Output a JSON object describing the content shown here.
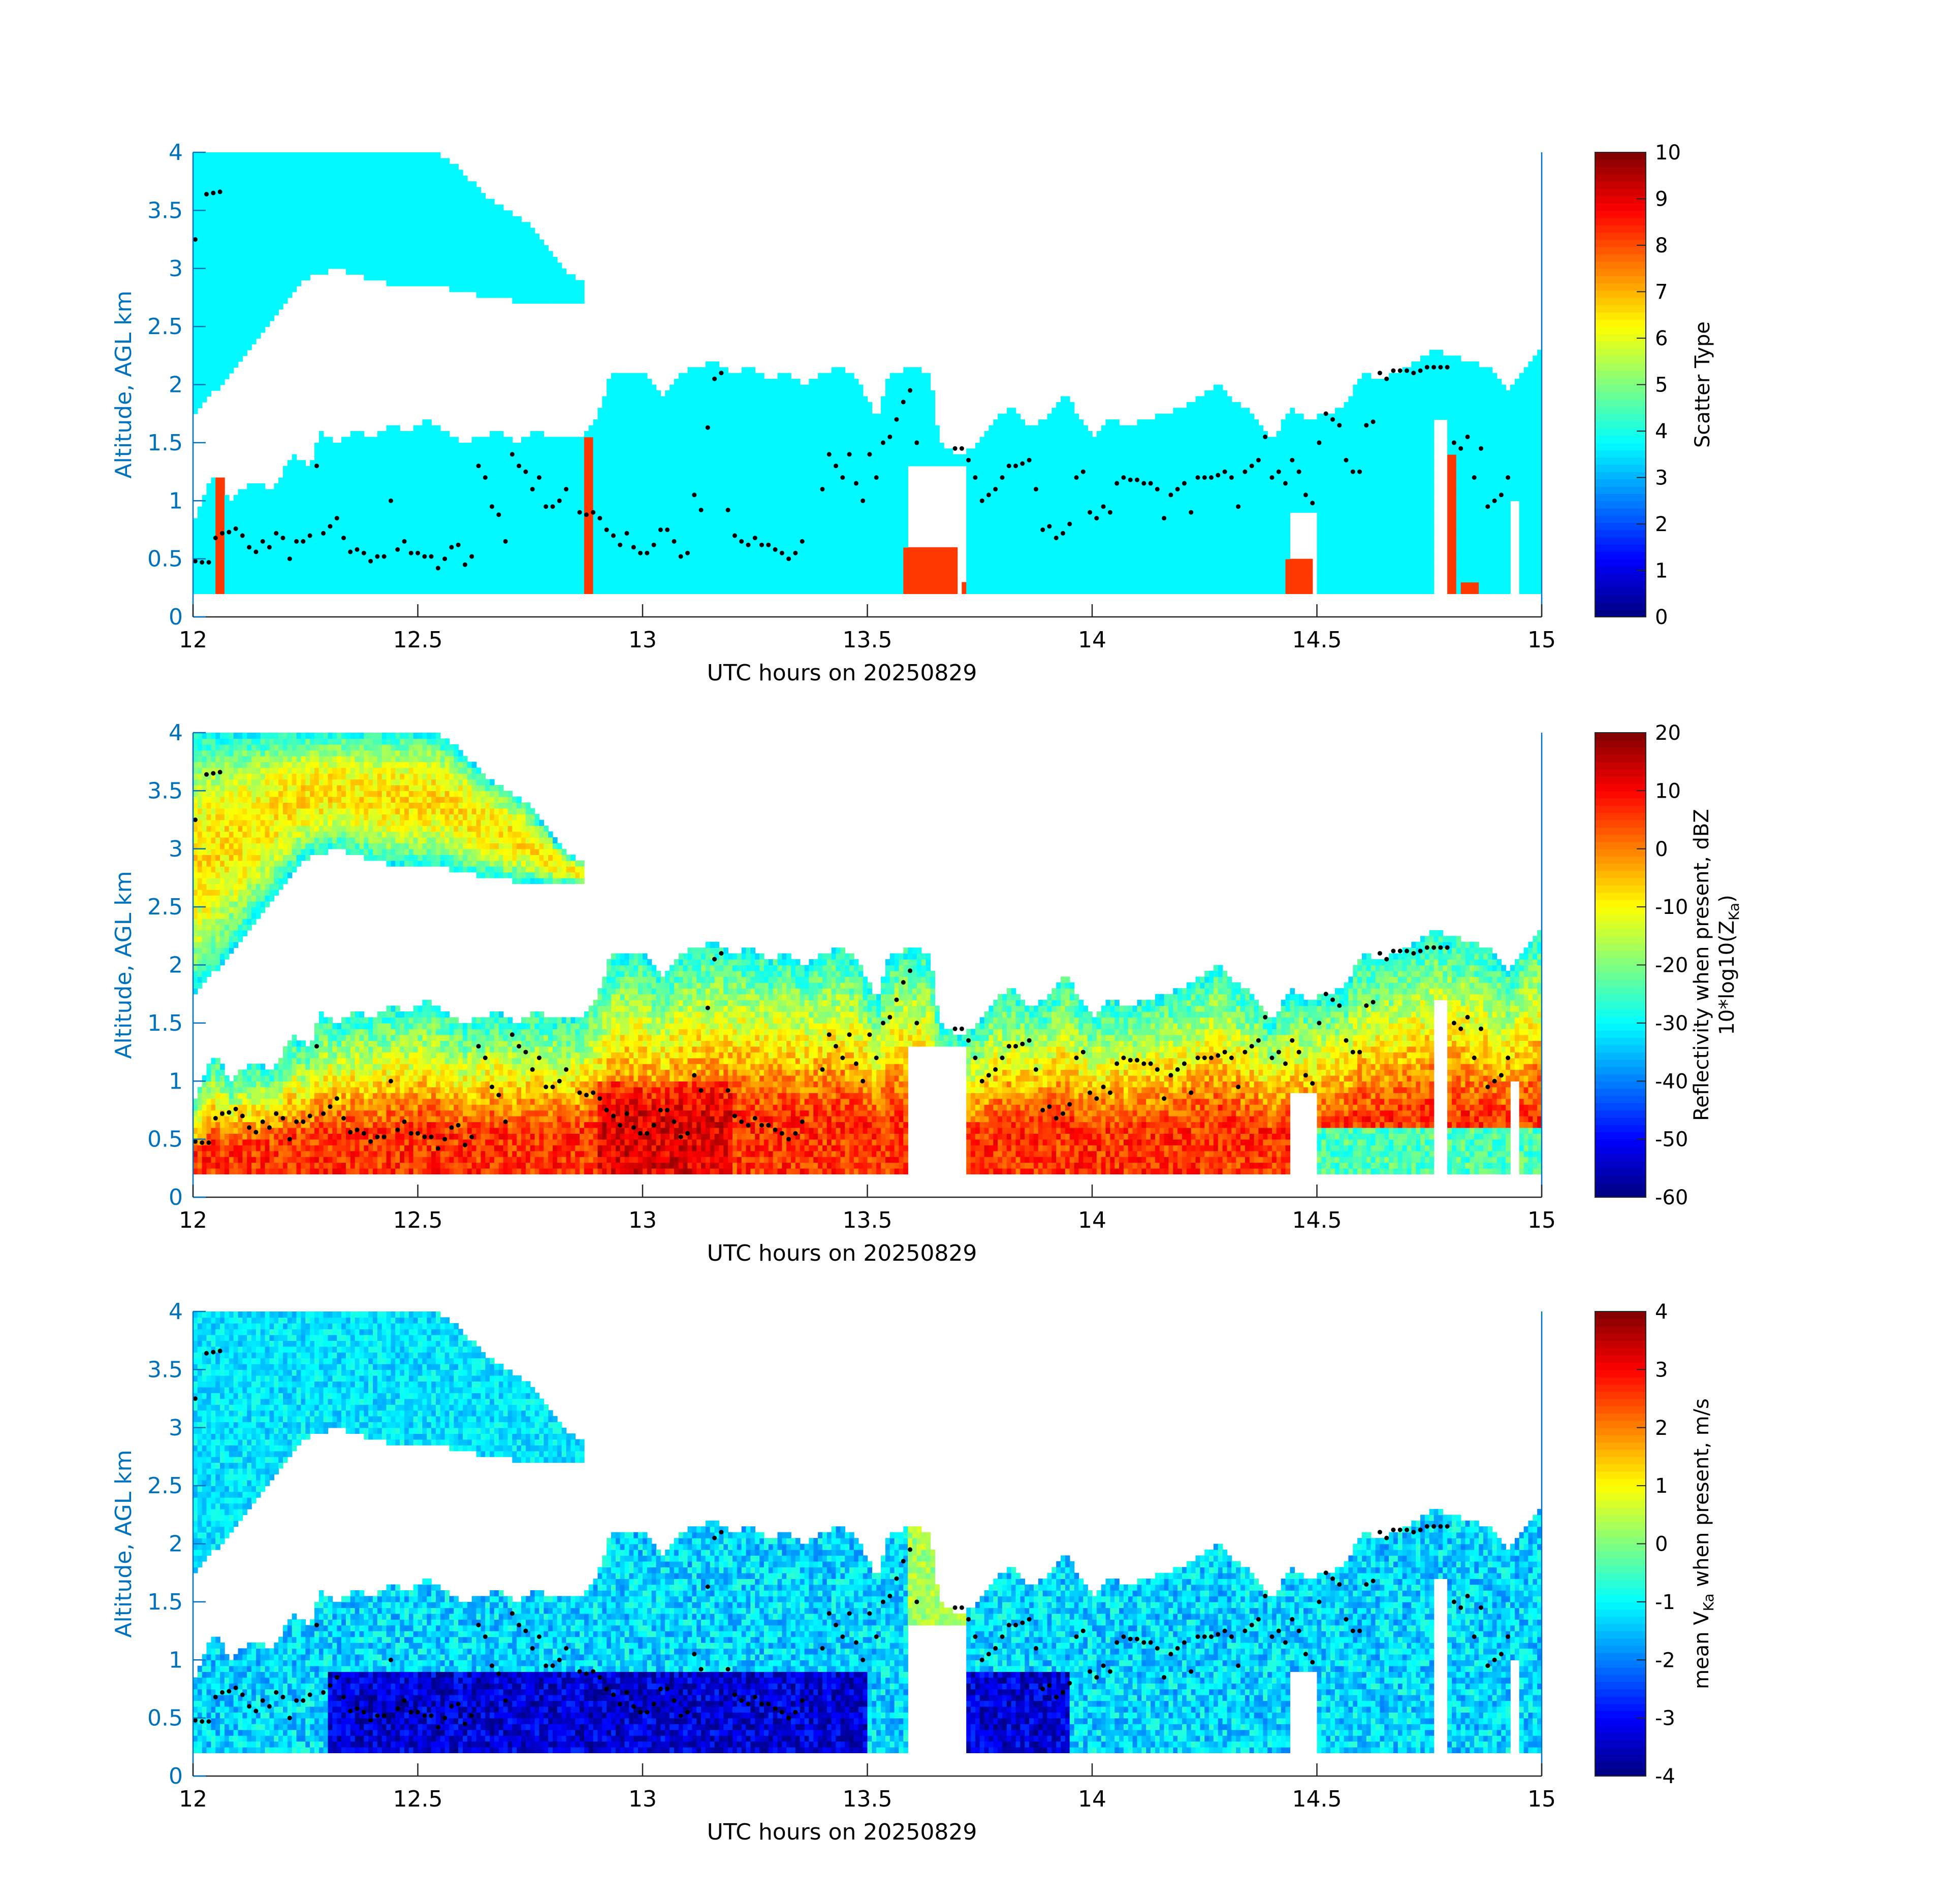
{
  "figure": {
    "xlabel": "UTC hours on 20250829",
    "ylabel": "Altitude, AGL km",
    "xlim": [
      12,
      15
    ],
    "ylim": [
      0,
      4
    ],
    "x_ticks": [
      "12",
      "12.5",
      "13",
      "13.5",
      "14",
      "14.5",
      "15"
    ],
    "y_ticks": [
      "0",
      "0.5",
      "1",
      "1.5",
      "2",
      "2.5",
      "3",
      "3.5",
      "4"
    ],
    "axis_color": "#0072bd"
  },
  "chart_data": [
    {
      "type": "heatmap",
      "name": "scatter-type",
      "xlabel": "UTC hours on 20250829",
      "ylabel": "Altitude, AGL km",
      "xlim": [
        12,
        15
      ],
      "ylim": [
        0,
        4
      ],
      "colorbar": {
        "label_lines": [
          "Scatter Type"
        ],
        "range": [
          0,
          10
        ],
        "ticks": [
          "0",
          "1",
          "2",
          "3",
          "4",
          "5",
          "6",
          "7",
          "8",
          "9",
          "10"
        ],
        "colormap": "jet"
      },
      "field": "scatter_type",
      "cloud_value": 3.7,
      "precip_value": 8.2,
      "precip_columns": [
        {
          "x": [
            12.05,
            12.07
          ],
          "top_km": 1.2
        },
        {
          "x": [
            12.87,
            12.89
          ],
          "top_km": 1.55
        },
        {
          "x": [
            13.58,
            13.7
          ],
          "top_km": 0.6
        },
        {
          "x": [
            13.71,
            13.72
          ],
          "top_km": 0.3
        },
        {
          "x": [
            14.43,
            14.49
          ],
          "top_km": 0.5
        },
        {
          "x": [
            14.79,
            14.81
          ],
          "top_km": 1.38
        },
        {
          "x": [
            14.82,
            14.86
          ],
          "top_km": 0.3
        }
      ]
    },
    {
      "type": "heatmap",
      "name": "reflectivity",
      "xlabel": "UTC hours on 20250829",
      "ylabel": "Altitude, AGL km",
      "xlim": [
        12,
        15
      ],
      "ylim": [
        0,
        4
      ],
      "colorbar": {
        "label_lines": [
          "Reflectivity when present, dBZ",
          "10*log10(Z",
          "Ka",
          ")"
        ],
        "range": [
          -60,
          20
        ],
        "ticks": [
          "-60",
          "-50",
          "-40",
          "-30",
          "-20",
          "-10",
          "0",
          "10",
          "20"
        ],
        "colormap": "jet"
      },
      "field": "reflectivity_dbz"
    },
    {
      "type": "heatmap",
      "name": "mean-velocity",
      "xlabel": "UTC hours on 20250829",
      "ylabel": "Altitude, AGL km",
      "xlim": [
        12,
        15
      ],
      "ylim": [
        0,
        4
      ],
      "colorbar": {
        "label_lines": [
          "mean V",
          "Ka",
          " when present, m/s"
        ],
        "range": [
          -4,
          4
        ],
        "ticks": [
          "-4",
          "-3",
          "-2",
          "-1",
          "0",
          "1",
          "2",
          "3",
          "4"
        ],
        "colormap": "jet"
      },
      "field": "mean_velocity_ms"
    }
  ],
  "cloud_layers": {
    "time_step_h": 0.02,
    "lower_cloud": {
      "base_km": 0.18,
      "tops_km": [
        [
          12.0,
          0.8
        ],
        [
          12.02,
          1.0
        ],
        [
          12.04,
          1.2
        ],
        [
          12.06,
          1.2
        ],
        [
          12.08,
          1.0
        ],
        [
          12.1,
          1.1
        ],
        [
          12.14,
          1.15
        ],
        [
          12.18,
          1.1
        ],
        [
          12.22,
          1.4
        ],
        [
          12.26,
          1.3
        ],
        [
          12.28,
          1.6
        ],
        [
          12.32,
          1.5
        ],
        [
          12.36,
          1.6
        ],
        [
          12.4,
          1.55
        ],
        [
          12.44,
          1.65
        ],
        [
          12.48,
          1.6
        ],
        [
          12.52,
          1.7
        ],
        [
          12.56,
          1.6
        ],
        [
          12.6,
          1.5
        ],
        [
          12.64,
          1.55
        ],
        [
          12.68,
          1.6
        ],
        [
          12.72,
          1.5
        ],
        [
          12.76,
          1.6
        ],
        [
          12.8,
          1.55
        ],
        [
          12.86,
          1.55
        ],
        [
          12.9,
          1.75
        ],
        [
          12.93,
          2.1
        ],
        [
          13.0,
          2.1
        ],
        [
          13.04,
          1.9
        ],
        [
          13.08,
          2.1
        ],
        [
          13.12,
          2.15
        ],
        [
          13.16,
          2.2
        ],
        [
          13.2,
          2.1
        ],
        [
          13.24,
          2.15
        ],
        [
          13.28,
          2.05
        ],
        [
          13.32,
          2.1
        ],
        [
          13.36,
          2.0
        ],
        [
          13.4,
          2.1
        ],
        [
          13.44,
          2.15
        ],
        [
          13.48,
          2.05
        ],
        [
          13.52,
          1.7
        ],
        [
          13.55,
          2.1
        ],
        [
          13.6,
          2.15
        ],
        [
          13.64,
          2.1
        ],
        [
          13.66,
          1.5
        ],
        [
          13.7,
          1.4
        ],
        [
          13.74,
          1.45
        ],
        [
          13.78,
          1.7
        ],
        [
          13.82,
          1.8
        ],
        [
          13.86,
          1.65
        ],
        [
          13.9,
          1.7
        ],
        [
          13.94,
          1.95
        ],
        [
          13.97,
          1.7
        ],
        [
          14.0,
          1.55
        ],
        [
          14.04,
          1.7
        ],
        [
          14.08,
          1.65
        ],
        [
          14.12,
          1.7
        ],
        [
          14.16,
          1.75
        ],
        [
          14.2,
          1.8
        ],
        [
          14.24,
          1.9
        ],
        [
          14.28,
          2.0
        ],
        [
          14.32,
          1.85
        ],
        [
          14.36,
          1.75
        ],
        [
          14.4,
          1.5
        ],
        [
          14.44,
          1.8
        ],
        [
          14.48,
          1.7
        ],
        [
          14.52,
          1.75
        ],
        [
          14.56,
          1.8
        ],
        [
          14.6,
          2.1
        ],
        [
          14.64,
          2.05
        ],
        [
          14.68,
          2.1
        ],
        [
          14.72,
          2.2
        ],
        [
          14.76,
          2.3
        ],
        [
          14.8,
          2.25
        ],
        [
          14.84,
          2.2
        ],
        [
          14.88,
          2.15
        ],
        [
          14.92,
          1.95
        ],
        [
          14.96,
          2.15
        ],
        [
          15.0,
          2.35
        ]
      ],
      "gaps": [
        {
          "x": [
            13.59,
            13.72
          ],
          "top_km": 1.3
        },
        {
          "x": [
            14.44,
            14.5
          ],
          "top_km": 0.9
        },
        {
          "x": [
            14.76,
            14.79
          ],
          "top_km": 1.7
        },
        {
          "x": [
            14.93,
            14.95
          ],
          "top_km": 1.0
        }
      ]
    },
    "upper_cloud": {
      "base_km": [
        [
          12.0,
          1.75
        ],
        [
          12.04,
          1.9
        ],
        [
          12.08,
          2.1
        ],
        [
          12.12,
          2.3
        ],
        [
          12.16,
          2.5
        ],
        [
          12.2,
          2.7
        ],
        [
          12.24,
          2.9
        ],
        [
          12.28,
          2.95
        ],
        [
          12.32,
          3.0
        ],
        [
          12.36,
          2.95
        ],
        [
          12.4,
          2.9
        ],
        [
          12.46,
          2.85
        ],
        [
          12.54,
          2.85
        ],
        [
          12.6,
          2.8
        ],
        [
          12.66,
          2.75
        ],
        [
          12.72,
          2.72
        ],
        [
          12.78,
          2.7
        ],
        [
          12.84,
          2.7
        ],
        [
          12.86,
          2.7
        ]
      ],
      "top_km": [
        [
          12.0,
          4.0
        ],
        [
          12.54,
          4.0
        ],
        [
          12.58,
          3.9
        ],
        [
          12.62,
          3.75
        ],
        [
          12.66,
          3.6
        ],
        [
          12.7,
          3.5
        ],
        [
          12.74,
          3.4
        ],
        [
          12.78,
          3.2
        ],
        [
          12.82,
          3.0
        ],
        [
          12.86,
          2.9
        ]
      ]
    }
  },
  "cloud_base_dots": [
    [
      12.005,
      0.48
    ],
    [
      12.02,
      0.47
    ],
    [
      12.035,
      0.47
    ],
    [
      12.05,
      0.68
    ],
    [
      12.065,
      0.72
    ],
    [
      12.08,
      0.73
    ],
    [
      12.095,
      0.76
    ],
    [
      12.11,
      0.7
    ],
    [
      12.125,
      0.6
    ],
    [
      12.14,
      0.56
    ],
    [
      12.155,
      0.65
    ],
    [
      12.17,
      0.6
    ],
    [
      12.185,
      0.72
    ],
    [
      12.2,
      0.68
    ],
    [
      12.215,
      0.5
    ],
    [
      12.23,
      0.65
    ],
    [
      12.245,
      0.65
    ],
    [
      12.26,
      0.7
    ],
    [
      12.275,
      1.3
    ],
    [
      12.29,
      0.72
    ],
    [
      12.305,
      0.78
    ],
    [
      12.32,
      0.85
    ],
    [
      12.335,
      0.68
    ],
    [
      12.35,
      0.56
    ],
    [
      12.365,
      0.58
    ],
    [
      12.38,
      0.55
    ],
    [
      12.395,
      0.48
    ],
    [
      12.41,
      0.52
    ],
    [
      12.425,
      0.52
    ],
    [
      12.44,
      1.0
    ],
    [
      12.455,
      0.58
    ],
    [
      12.47,
      0.65
    ],
    [
      12.485,
      0.55
    ],
    [
      12.5,
      0.55
    ],
    [
      12.515,
      0.52
    ],
    [
      12.53,
      0.52
    ],
    [
      12.545,
      0.42
    ],
    [
      12.56,
      0.5
    ],
    [
      12.575,
      0.6
    ],
    [
      12.59,
      0.62
    ],
    [
      12.605,
      0.45
    ],
    [
      12.62,
      0.52
    ],
    [
      12.635,
      1.3
    ],
    [
      12.65,
      1.2
    ],
    [
      12.665,
      0.95
    ],
    [
      12.68,
      0.88
    ],
    [
      12.695,
      0.65
    ],
    [
      12.71,
      1.4
    ],
    [
      12.725,
      1.3
    ],
    [
      12.74,
      1.25
    ],
    [
      12.755,
      1.1
    ],
    [
      12.77,
      1.2
    ],
    [
      12.785,
      0.95
    ],
    [
      12.8,
      0.95
    ],
    [
      12.815,
      1.0
    ],
    [
      12.83,
      1.1
    ],
    [
      12.86,
      0.9
    ],
    [
      12.875,
      0.88
    ],
    [
      12.89,
      0.9
    ],
    [
      12.905,
      0.85
    ],
    [
      12.92,
      0.75
    ],
    [
      12.935,
      0.7
    ],
    [
      12.95,
      0.62
    ],
    [
      12.965,
      0.72
    ],
    [
      12.98,
      0.6
    ],
    [
      12.995,
      0.55
    ],
    [
      13.01,
      0.55
    ],
    [
      13.025,
      0.62
    ],
    [
      13.04,
      0.75
    ],
    [
      13.055,
      0.75
    ],
    [
      13.07,
      0.65
    ],
    [
      13.085,
      0.52
    ],
    [
      13.1,
      0.55
    ],
    [
      13.115,
      1.05
    ],
    [
      13.13,
      0.92
    ],
    [
      13.145,
      1.63
    ],
    [
      13.16,
      2.05
    ],
    [
      13.175,
      2.1
    ],
    [
      13.19,
      0.92
    ],
    [
      13.205,
      0.7
    ],
    [
      13.22,
      0.65
    ],
    [
      13.235,
      0.62
    ],
    [
      13.25,
      0.68
    ],
    [
      13.265,
      0.62
    ],
    [
      13.28,
      0.62
    ],
    [
      13.295,
      0.58
    ],
    [
      13.31,
      0.55
    ],
    [
      13.325,
      0.5
    ],
    [
      13.34,
      0.55
    ],
    [
      13.355,
      0.65
    ],
    [
      13.4,
      1.1
    ],
    [
      13.415,
      1.4
    ],
    [
      13.43,
      1.3
    ],
    [
      13.445,
      1.2
    ],
    [
      13.46,
      1.4
    ],
    [
      13.475,
      1.15
    ],
    [
      13.49,
      1.0
    ],
    [
      13.505,
      1.4
    ],
    [
      13.52,
      1.2
    ],
    [
      13.535,
      1.5
    ],
    [
      13.55,
      1.55
    ],
    [
      13.565,
      1.7
    ],
    [
      13.58,
      1.85
    ],
    [
      13.595,
      1.95
    ],
    [
      13.61,
      1.5
    ],
    [
      13.695,
      1.45
    ],
    [
      13.71,
      1.45
    ],
    [
      13.725,
      1.35
    ],
    [
      13.74,
      1.2
    ],
    [
      13.755,
      1.0
    ],
    [
      13.77,
      1.05
    ],
    [
      13.785,
      1.1
    ],
    [
      13.8,
      1.2
    ],
    [
      13.815,
      1.3
    ],
    [
      13.83,
      1.3
    ],
    [
      13.845,
      1.32
    ],
    [
      13.86,
      1.35
    ],
    [
      13.875,
      1.1
    ],
    [
      13.89,
      0.75
    ],
    [
      13.905,
      0.78
    ],
    [
      13.92,
      0.68
    ],
    [
      13.935,
      0.72
    ],
    [
      13.95,
      0.8
    ],
    [
      13.965,
      1.2
    ],
    [
      13.98,
      1.25
    ],
    [
      13.995,
      0.9
    ],
    [
      14.01,
      0.85
    ],
    [
      14.025,
      0.95
    ],
    [
      14.04,
      0.9
    ],
    [
      14.055,
      1.15
    ],
    [
      14.07,
      1.2
    ],
    [
      14.085,
      1.18
    ],
    [
      14.1,
      1.18
    ],
    [
      14.115,
      1.15
    ],
    [
      14.13,
      1.15
    ],
    [
      14.145,
      1.1
    ],
    [
      14.16,
      0.85
    ],
    [
      14.175,
      1.05
    ],
    [
      14.19,
      1.1
    ],
    [
      14.205,
      1.15
    ],
    [
      14.22,
      0.9
    ],
    [
      14.235,
      1.2
    ],
    [
      14.25,
      1.2
    ],
    [
      14.265,
      1.2
    ],
    [
      14.28,
      1.22
    ],
    [
      14.295,
      1.25
    ],
    [
      14.31,
      1.2
    ],
    [
      14.325,
      0.95
    ],
    [
      14.34,
      1.25
    ],
    [
      14.355,
      1.3
    ],
    [
      14.37,
      1.35
    ],
    [
      14.385,
      1.55
    ],
    [
      14.4,
      1.2
    ],
    [
      14.415,
      1.25
    ],
    [
      14.43,
      1.15
    ],
    [
      14.445,
      1.35
    ],
    [
      14.46,
      1.25
    ],
    [
      14.475,
      1.05
    ],
    [
      14.49,
      0.98
    ],
    [
      14.505,
      1.5
    ],
    [
      14.52,
      1.75
    ],
    [
      14.535,
      1.7
    ],
    [
      14.55,
      1.65
    ],
    [
      14.565,
      1.35
    ],
    [
      14.58,
      1.25
    ],
    [
      14.595,
      1.25
    ],
    [
      14.61,
      1.65
    ],
    [
      14.625,
      1.68
    ],
    [
      14.64,
      2.1
    ],
    [
      14.655,
      2.05
    ],
    [
      14.67,
      2.12
    ],
    [
      14.685,
      2.12
    ],
    [
      14.7,
      2.12
    ],
    [
      14.715,
      2.1
    ],
    [
      14.73,
      2.12
    ],
    [
      14.745,
      2.15
    ],
    [
      14.76,
      2.15
    ],
    [
      14.775,
      2.15
    ],
    [
      14.79,
      2.15
    ],
    [
      14.805,
      1.5
    ],
    [
      14.82,
      1.45
    ],
    [
      14.835,
      1.55
    ],
    [
      14.85,
      1.2
    ],
    [
      14.865,
      1.45
    ],
    [
      14.88,
      0.95
    ],
    [
      14.895,
      1.0
    ],
    [
      14.91,
      1.05
    ],
    [
      14.925,
      1.2
    ],
    [
      12.005,
      3.25
    ],
    [
      12.03,
      3.64
    ],
    [
      12.045,
      3.65
    ],
    [
      12.06,
      3.66
    ]
  ]
}
